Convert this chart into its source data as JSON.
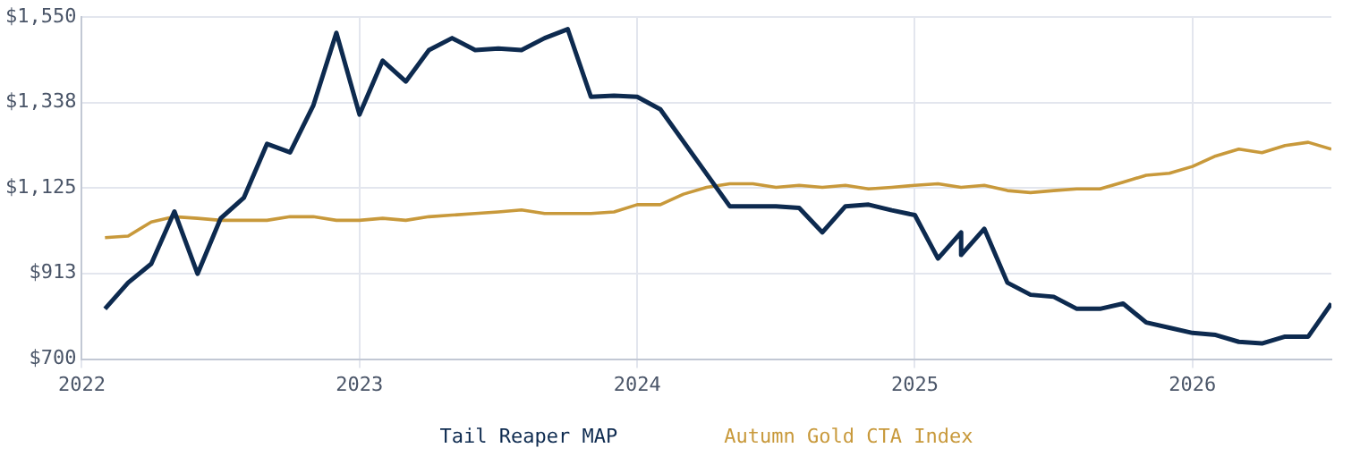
{
  "chart_data": {
    "type": "line",
    "x": [
      "2022-02",
      "2022-03",
      "2022-04",
      "2022-05",
      "2022-06",
      "2022-07",
      "2022-08",
      "2022-09",
      "2022-10",
      "2022-11",
      "2022-12",
      "2023-01",
      "2023-02",
      "2023-03",
      "2023-04",
      "2023-05",
      "2023-06",
      "2023-07",
      "2023-08",
      "2023-09",
      "2023-10",
      "2023-11",
      "2023-12",
      "2024-01",
      "2024-02",
      "2024-05",
      "2024-06",
      "2024-07",
      "2024-08",
      "2024-09",
      "2024-10",
      "2024-11",
      "2024-12",
      "2025-01",
      "2025-02",
      "2025-03",
      "2025-03",
      "2025-04",
      "2025-05",
      "2025-06",
      "2025-07",
      "2025-08",
      "2025-09",
      "2025-10",
      "2025-11",
      "2025-12",
      "2026-01",
      "2026-02",
      "2026-03",
      "2026-04",
      "2026-05",
      "2026-06",
      "2026-07"
    ],
    "series": [
      {
        "name": "Tail Reaper MAP",
        "color": "#0d2a4f",
        "values": [
          825,
          890,
          937,
          1067,
          912,
          1050,
          1101,
          1235,
          1214,
          1330,
          1511,
          1308,
          1442,
          1390,
          1468,
          1498,
          1468,
          1472,
          1468,
          1498,
          1520,
          1352,
          1355,
          1352,
          1321,
          1080,
          1080,
          1080,
          1076,
          1015,
          1080,
          1084,
          1070,
          1058,
          950,
          1015,
          959,
          1024,
          890,
          860,
          855,
          825,
          825,
          838,
          791,
          778,
          765,
          760,
          743,
          739,
          756,
          756,
          838
        ]
      },
      {
        "name": "Autumn Gold CTA Index",
        "color": "#c8993b",
        "x": [
          "2022-02",
          "2022-03",
          "2022-04",
          "2022-05",
          "2022-06",
          "2022-07",
          "2022-08",
          "2022-09",
          "2022-10",
          "2022-11",
          "2022-12",
          "2023-01",
          "2023-02",
          "2023-03",
          "2023-04",
          "2023-05",
          "2023-06",
          "2023-07",
          "2023-08",
          "2023-09",
          "2023-10",
          "2023-11",
          "2023-12",
          "2024-01",
          "2024-02",
          "2024-03",
          "2024-04",
          "2024-05",
          "2024-06",
          "2024-07",
          "2024-08",
          "2024-09",
          "2024-10",
          "2024-11",
          "2024-12",
          "2025-01",
          "2025-02",
          "2025-03",
          "2025-04",
          "2025-05",
          "2025-06",
          "2025-07",
          "2025-08",
          "2025-09",
          "2025-10",
          "2025-11",
          "2025-12",
          "2026-01",
          "2026-02",
          "2026-03",
          "2026-04",
          "2026-05",
          "2026-06",
          "2026-07"
        ],
        "values": [
          1002,
          1006,
          1041,
          1054,
          1050,
          1045,
          1045,
          1045,
          1054,
          1054,
          1045,
          1045,
          1050,
          1045,
          1054,
          1058,
          1062,
          1066,
          1071,
          1062,
          1062,
          1062,
          1066,
          1084,
          1084,
          1110,
          1127,
          1136,
          1136,
          1127,
          1132,
          1127,
          1132,
          1123,
          1127,
          1132,
          1136,
          1127,
          1132,
          1119,
          1114,
          1119,
          1123,
          1123,
          1140,
          1157,
          1162,
          1179,
          1205,
          1222,
          1213,
          1231,
          1239,
          1222
        ]
      }
    ],
    "xlim": [
      "2022",
      "2026-07"
    ],
    "xticks": [
      "2022",
      "2023",
      "2024",
      "2025",
      "2026"
    ],
    "ylim": [
      700,
      1550
    ],
    "yticks": [
      {
        "value": 700,
        "label": "$700"
      },
      {
        "value": 913,
        "label": "$913"
      },
      {
        "value": 1125,
        "label": "$1,125"
      },
      {
        "value": 1338,
        "label": "$1,338"
      },
      {
        "value": 1550,
        "label": "$1,550"
      }
    ],
    "grid": true,
    "legend": "bottom",
    "marker": "none",
    "line_style": "solid"
  }
}
